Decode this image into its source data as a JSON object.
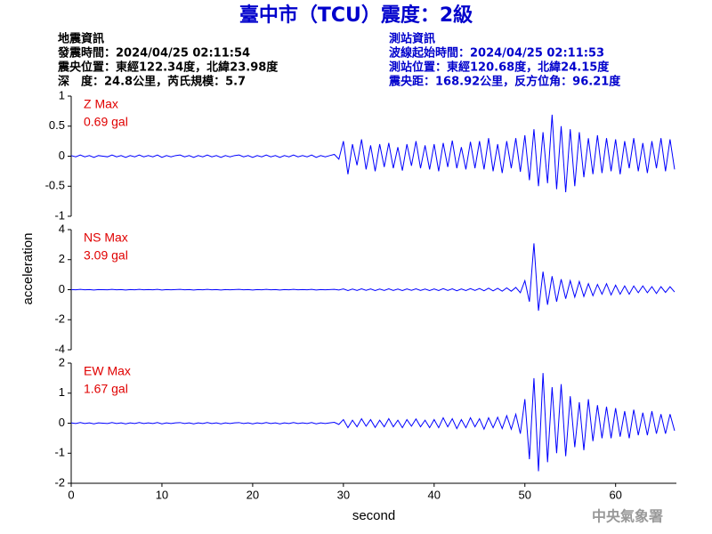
{
  "page": {
    "title": "臺中市（TCU）震度：2級",
    "left_info": [
      "地震資訊",
      "發震時間：2024/04/25 02:11:54",
      "震央位置：東經122.34度，北緯23.98度",
      "深　度：24.8公里，芮氏規模：5.7"
    ],
    "right_info": [
      "測站資訊",
      "波線起始時間：2024/04/25 02:11:53",
      "測站位置：東經120.68度，北緯24.15度",
      "震央距：168.92公里，反方位角：96.21度"
    ],
    "footer": "中央氣象署"
  },
  "chart_data": [
    {
      "type": "line",
      "label": "Z Max",
      "max_text": "0.69 gal",
      "color": "#0000ff",
      "xlim": [
        0,
        66.7
      ],
      "ylim": [
        -1,
        1
      ],
      "yticks": [
        1,
        0.5,
        0,
        -0.5,
        -1
      ],
      "x": [
        0,
        0.5,
        1,
        1.5,
        2,
        2.5,
        3,
        3.5,
        4,
        4.5,
        5,
        5.5,
        6,
        6.5,
        7,
        7.5,
        8,
        8.5,
        9,
        9.5,
        10,
        10.5,
        11,
        11.5,
        12,
        12.5,
        13,
        13.5,
        14,
        14.5,
        15,
        15.5,
        16,
        16.5,
        17,
        17.5,
        18,
        18.5,
        19,
        19.5,
        20,
        20.5,
        21,
        21.5,
        22,
        22.5,
        23,
        23.5,
        24,
        24.5,
        25,
        25.5,
        26,
        26.5,
        27,
        27.5,
        28,
        28.5,
        29,
        29.5,
        30,
        30.5,
        31,
        31.5,
        32,
        32.5,
        33,
        33.5,
        34,
        34.5,
        35,
        35.5,
        36,
        36.5,
        37,
        37.5,
        38,
        38.5,
        39,
        39.5,
        40,
        40.5,
        41,
        41.5,
        42,
        42.5,
        43,
        43.5,
        44,
        44.5,
        45,
        45.5,
        46,
        46.5,
        47,
        47.5,
        48,
        48.5,
        49,
        49.5,
        50,
        50.5,
        51,
        51.5,
        52,
        52.5,
        53,
        53.5,
        54,
        54.5,
        55,
        55.5,
        56,
        56.5,
        57,
        57.5,
        58,
        58.5,
        59,
        59.5,
        60,
        60.5,
        61,
        61.5,
        62,
        62.5,
        63,
        63.5,
        64,
        64.5,
        65,
        65.5,
        66,
        66.5
      ],
      "values": [
        0.01,
        -0.01,
        0.02,
        -0.01,
        0.01,
        -0.02,
        0.01,
        0,
        -0.01,
        0.02,
        -0.01,
        0.01,
        -0.02,
        0.01,
        -0.01,
        0.02,
        -0.01,
        0.01,
        -0.01,
        0.02,
        -0.02,
        0.01,
        -0.01,
        0.01,
        0.02,
        -0.01,
        0.01,
        -0.02,
        0.01,
        -0.01,
        0.02,
        -0.01,
        0.01,
        -0.02,
        0.01,
        -0.01,
        0.01,
        0.02,
        -0.01,
        0.01,
        -0.02,
        0.01,
        -0.01,
        0.02,
        -0.01,
        0.01,
        -0.02,
        0.01,
        -0.01,
        0.02,
        -0.01,
        0.01,
        -0.01,
        0.02,
        -0.02,
        0.01,
        -0.01,
        0.01,
        0.03,
        -0.05,
        0.25,
        -0.3,
        0.2,
        -0.15,
        0.28,
        -0.22,
        0.18,
        -0.25,
        0.2,
        -0.18,
        0.22,
        -0.2,
        0.15,
        -0.24,
        0.2,
        -0.16,
        0.25,
        -0.2,
        0.18,
        -0.22,
        0.2,
        -0.25,
        0.22,
        -0.18,
        0.26,
        -0.2,
        0.15,
        -0.22,
        0.24,
        -0.2,
        0.25,
        -0.22,
        0.3,
        -0.25,
        0.2,
        -0.28,
        0.25,
        -0.2,
        0.3,
        -0.26,
        0.35,
        -0.4,
        0.45,
        -0.5,
        0.4,
        -0.45,
        0.69,
        -0.55,
        0.5,
        -0.6,
        0.45,
        -0.5,
        0.4,
        -0.35,
        0.3,
        -0.3,
        0.35,
        -0.28,
        0.3,
        -0.25,
        0.28,
        -0.3,
        0.25,
        -0.2,
        0.3,
        -0.25,
        0.22,
        -0.28,
        0.25,
        -0.2,
        0.3,
        -0.25,
        0.28,
        -0.22
      ]
    },
    {
      "type": "line",
      "label": "NS Max",
      "max_text": "3.09 gal",
      "ylabel": "acceleration",
      "color": "#0000ff",
      "xlim": [
        0,
        66.7
      ],
      "ylim": [
        -4,
        4
      ],
      "yticks": [
        4,
        2,
        0,
        -2,
        -4
      ],
      "x": [
        0,
        0.5,
        1,
        1.5,
        2,
        2.5,
        3,
        3.5,
        4,
        4.5,
        5,
        5.5,
        6,
        6.5,
        7,
        7.5,
        8,
        8.5,
        9,
        9.5,
        10,
        10.5,
        11,
        11.5,
        12,
        12.5,
        13,
        13.5,
        14,
        14.5,
        15,
        15.5,
        16,
        16.5,
        17,
        17.5,
        18,
        18.5,
        19,
        19.5,
        20,
        20.5,
        21,
        21.5,
        22,
        22.5,
        23,
        23.5,
        24,
        24.5,
        25,
        25.5,
        26,
        26.5,
        27,
        27.5,
        28,
        28.5,
        29,
        29.5,
        30,
        30.5,
        31,
        31.5,
        32,
        32.5,
        33,
        33.5,
        34,
        34.5,
        35,
        35.5,
        36,
        36.5,
        37,
        37.5,
        38,
        38.5,
        39,
        39.5,
        40,
        40.5,
        41,
        41.5,
        42,
        42.5,
        43,
        43.5,
        44,
        44.5,
        45,
        45.5,
        46,
        46.5,
        47,
        47.5,
        48,
        48.5,
        49,
        49.5,
        50,
        50.5,
        51,
        51.5,
        52,
        52.5,
        53,
        53.5,
        54,
        54.5,
        55,
        55.5,
        56,
        56.5,
        57,
        57.5,
        58,
        58.5,
        59,
        59.5,
        60,
        60.5,
        61,
        61.5,
        62,
        62.5,
        63,
        63.5,
        64,
        64.5,
        65,
        65.5,
        66,
        66.5
      ],
      "values": [
        0.01,
        -0.01,
        0.02,
        -0.01,
        0.01,
        -0.02,
        0.01,
        0,
        -0.01,
        0.02,
        -0.01,
        0.01,
        -0.02,
        0.01,
        -0.01,
        0.02,
        -0.01,
        0.01,
        -0.01,
        0.02,
        -0.02,
        0.01,
        -0.01,
        0.01,
        0.02,
        -0.01,
        0.01,
        -0.02,
        0.01,
        -0.01,
        0.02,
        -0.01,
        0.01,
        -0.02,
        0.01,
        -0.01,
        0.01,
        0.02,
        -0.01,
        0.01,
        -0.02,
        0.01,
        -0.01,
        0.02,
        -0.01,
        0.01,
        -0.02,
        0.01,
        -0.01,
        0.02,
        -0.01,
        0.01,
        -0.01,
        0.02,
        -0.02,
        0.01,
        -0.01,
        0.01,
        0.02,
        -0.02,
        0.05,
        -0.06,
        0.04,
        -0.05,
        0.06,
        -0.04,
        0.05,
        -0.06,
        0.04,
        -0.05,
        0.06,
        -0.05,
        0.04,
        -0.06,
        0.05,
        -0.04,
        0.06,
        -0.05,
        0.04,
        -0.06,
        0.05,
        -0.06,
        0.07,
        -0.05,
        0.06,
        -0.07,
        0.05,
        -0.06,
        0.07,
        -0.05,
        0.08,
        -0.07,
        0.1,
        -0.08,
        0.09,
        -0.1,
        0.12,
        -0.1,
        0.15,
        -0.2,
        0.6,
        -0.8,
        3.09,
        -1.4,
        1.2,
        -1.0,
        0.9,
        -0.8,
        0.7,
        -0.6,
        0.6,
        -0.5,
        0.55,
        -0.45,
        0.4,
        -0.4,
        0.35,
        -0.3,
        0.4,
        -0.35,
        0.3,
        -0.3,
        0.25,
        -0.3,
        0.25,
        -0.2,
        0.25,
        -0.2,
        0.2,
        -0.25,
        0.2,
        -0.18,
        0.2,
        -0.15
      ]
    },
    {
      "type": "line",
      "label": "EW Max",
      "max_text": "1.67 gal",
      "xlabel": "second",
      "color": "#0000ff",
      "xlim": [
        0,
        66.7
      ],
      "ylim": [
        -2,
        2
      ],
      "yticks": [
        2,
        1,
        0,
        -1,
        -2
      ],
      "xticks": [
        0,
        10,
        20,
        30,
        40,
        50,
        60
      ],
      "x": [
        0,
        0.5,
        1,
        1.5,
        2,
        2.5,
        3,
        3.5,
        4,
        4.5,
        5,
        5.5,
        6,
        6.5,
        7,
        7.5,
        8,
        8.5,
        9,
        9.5,
        10,
        10.5,
        11,
        11.5,
        12,
        12.5,
        13,
        13.5,
        14,
        14.5,
        15,
        15.5,
        16,
        16.5,
        17,
        17.5,
        18,
        18.5,
        19,
        19.5,
        20,
        20.5,
        21,
        21.5,
        22,
        22.5,
        23,
        23.5,
        24,
        24.5,
        25,
        25.5,
        26,
        26.5,
        27,
        27.5,
        28,
        28.5,
        29,
        29.5,
        30,
        30.5,
        31,
        31.5,
        32,
        32.5,
        33,
        33.5,
        34,
        34.5,
        35,
        35.5,
        36,
        36.5,
        37,
        37.5,
        38,
        38.5,
        39,
        39.5,
        40,
        40.5,
        41,
        41.5,
        42,
        42.5,
        43,
        43.5,
        44,
        44.5,
        45,
        45.5,
        46,
        46.5,
        47,
        47.5,
        48,
        48.5,
        49,
        49.5,
        50,
        50.5,
        51,
        51.5,
        52,
        52.5,
        53,
        53.5,
        54,
        54.5,
        55,
        55.5,
        56,
        56.5,
        57,
        57.5,
        58,
        58.5,
        59,
        59.5,
        60,
        60.5,
        61,
        61.5,
        62,
        62.5,
        63,
        63.5,
        64,
        64.5,
        65,
        65.5,
        66,
        66.5
      ],
      "values": [
        0.01,
        -0.01,
        0.02,
        -0.01,
        0.01,
        -0.02,
        0.01,
        0,
        -0.01,
        0.02,
        -0.01,
        0.01,
        -0.02,
        0.01,
        -0.01,
        0.02,
        -0.01,
        0.01,
        -0.01,
        0.02,
        -0.02,
        0.01,
        -0.01,
        0.01,
        0.02,
        -0.01,
        0.01,
        -0.02,
        0.01,
        -0.01,
        0.02,
        -0.01,
        0.01,
        -0.02,
        0.01,
        -0.01,
        0.01,
        0.02,
        -0.01,
        0.01,
        -0.02,
        0.01,
        -0.01,
        0.02,
        -0.01,
        0.01,
        -0.02,
        0.01,
        -0.01,
        0.02,
        -0.01,
        0.01,
        -0.01,
        0.02,
        -0.02,
        0.01,
        -0.01,
        0.01,
        0.03,
        -0.04,
        0.12,
        -0.15,
        0.1,
        -0.12,
        0.15,
        -0.1,
        0.12,
        -0.14,
        0.1,
        -0.12,
        0.15,
        -0.12,
        0.1,
        -0.15,
        0.12,
        -0.1,
        0.14,
        -0.12,
        0.1,
        -0.15,
        0.12,
        -0.15,
        0.18,
        -0.12,
        0.15,
        -0.18,
        0.12,
        -0.15,
        0.18,
        -0.12,
        0.15,
        -0.2,
        0.18,
        -0.15,
        0.2,
        -0.18,
        0.25,
        -0.2,
        0.3,
        -0.35,
        0.8,
        -1.2,
        1.5,
        -1.6,
        1.67,
        -1.3,
        1.2,
        -1.0,
        1.3,
        -1.1,
        0.9,
        -0.8,
        0.7,
        -0.9,
        0.8,
        -0.6,
        0.6,
        -0.5,
        0.55,
        -0.5,
        0.5,
        -0.45,
        0.4,
        -0.5,
        0.45,
        -0.4,
        0.35,
        -0.4,
        0.4,
        -0.35,
        0.3,
        -0.35,
        0.3,
        -0.25
      ]
    }
  ]
}
